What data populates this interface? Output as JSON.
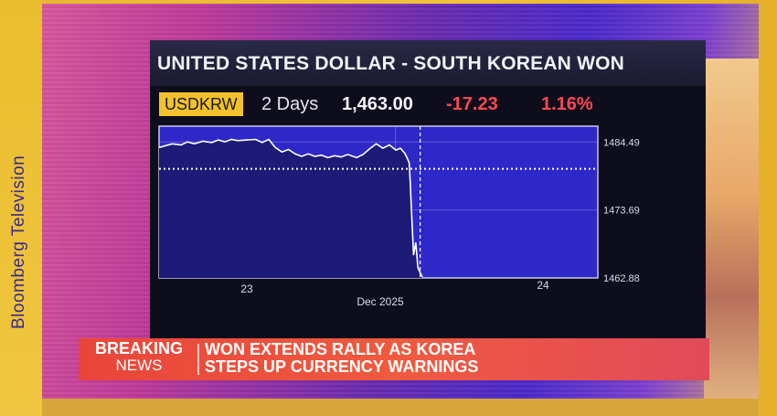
{
  "brand": "Bloomberg Television",
  "panel": {
    "title": "UNITED STATES DOLLAR - SOUTH KOREAN WON",
    "ticker": "USDKRW",
    "period": "2 Days",
    "price": "1,463.00",
    "change": "-17.23",
    "change_pct": "1.16%"
  },
  "chart_data": {
    "type": "line",
    "series": [
      {
        "x": [
          0,
          0.03,
          0.06,
          0.1,
          0.13,
          0.16,
          0.2,
          0.24,
          0.27,
          0.3,
          0.33,
          0.36,
          0.4,
          0.44,
          0.47,
          0.5,
          0.53,
          0.56,
          0.59,
          0.62,
          0.65,
          0.68,
          0.71,
          0.74,
          0.77,
          0.8,
          0.83,
          0.86,
          0.9,
          0.93,
          0.96,
          0.99,
          1.02,
          1.05,
          1.08,
          1.1,
          1.12,
          1.13,
          1.14,
          1.145,
          1.15,
          1.16,
          1.17,
          1.18,
          1.2
        ],
        "values": [
          1483.6,
          1483.9,
          1484.2,
          1484.0,
          1484.5,
          1484.2,
          1484.6,
          1484.4,
          1484.8,
          1484.5,
          1484.9,
          1484.7,
          1484.8,
          1484.9,
          1484.4,
          1484.9,
          1483.6,
          1482.9,
          1483.3,
          1482.6,
          1482.2,
          1482.6,
          1482.2,
          1482.4,
          1482.0,
          1482.3,
          1482.1,
          1482.5,
          1482.0,
          1482.5,
          1483.4,
          1484.2,
          1483.5,
          1484.0,
          1483.2,
          1483.5,
          1482.7,
          1482.0,
          1481.2,
          1478.0,
          1474.0,
          1466.5,
          1468.5,
          1464.5,
          1463.0
        ]
      }
    ],
    "x_ticks": [
      {
        "x": 0.4,
        "label": "23"
      },
      {
        "x": 1.75,
        "label": "24"
      }
    ],
    "xlabel": "Dec 2025",
    "ylim": [
      1462.88,
      1487.0
    ],
    "y_ticks": [
      "1484.49",
      "1473.69",
      "1462.88"
    ],
    "y_tick_values": [
      1484.49,
      1473.69,
      1462.88
    ],
    "reference_line": 1480.23,
    "current_time": 1.19,
    "grid": true
  },
  "breaking": {
    "label_top": "BREAKING",
    "label_bottom": "NEWS",
    "headline_line1": "WON EXTENDS RALLY AS KOREA",
    "headline_line2": "STEPS UP CURRENCY WARNINGS"
  }
}
